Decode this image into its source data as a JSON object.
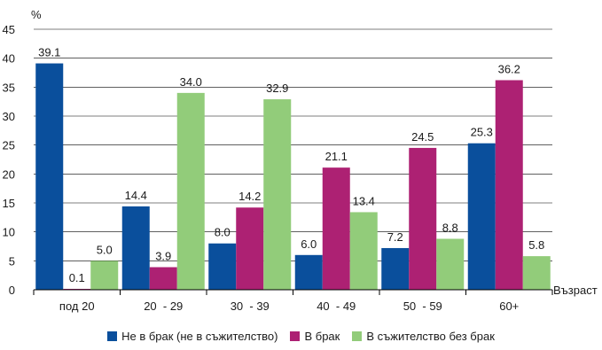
{
  "chart_data": {
    "type": "bar",
    "ylabel": "%",
    "xlabel": "Възраст",
    "ylim": [
      0,
      45
    ],
    "yticks": [
      0,
      5,
      10,
      15,
      20,
      25,
      30,
      35,
      40,
      45
    ],
    "categories": [
      "под 20",
      "20  - 29",
      "30  - 39",
      "40  - 49",
      "50  - 59",
      "60+"
    ],
    "series": [
      {
        "name": "Не в брак (не в съжителство)",
        "color": "#0a4f9c",
        "values": [
          39.1,
          14.4,
          8.0,
          6.0,
          7.2,
          25.3
        ],
        "labels": [
          "39.1",
          "14.4",
          "8.0",
          "6.0",
          "7.2",
          "25.3"
        ]
      },
      {
        "name": "В брак",
        "color": "#ad2173",
        "values": [
          0.1,
          3.9,
          14.2,
          21.1,
          24.5,
          36.2
        ],
        "labels": [
          "0.1",
          "3.9",
          "14.2",
          "21.1",
          "24.5",
          "36.2"
        ]
      },
      {
        "name": "В съжителство без брак",
        "color": "#92cc7a",
        "values": [
          5.0,
          34.0,
          32.9,
          13.4,
          8.8,
          5.8
        ],
        "labels": [
          "5.0",
          "34.0",
          "32.9",
          "13.4",
          "8.8",
          "5.8"
        ]
      }
    ],
    "grid": true,
    "legend_position": "bottom"
  }
}
